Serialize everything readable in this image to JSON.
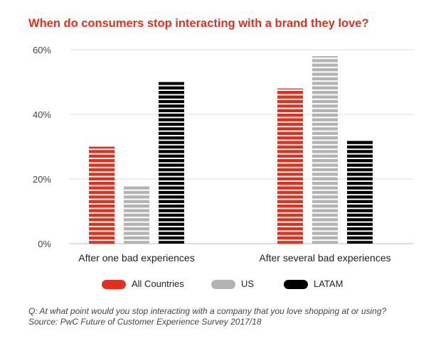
{
  "chart_data": {
    "type": "bar",
    "title": "When do consumers stop interacting with a brand they love?",
    "categories": [
      "After one bad experiences",
      "After several bad experiences"
    ],
    "series": [
      {
        "name": "All Countries",
        "values": [
          30,
          48
        ]
      },
      {
        "name": "US",
        "values": [
          18,
          58
        ]
      },
      {
        "name": "LATAM",
        "values": [
          50,
          32
        ]
      }
    ],
    "colors": [
      "#e0301e",
      "#b3b3b3",
      "#000000"
    ],
    "y_ticks": [
      "0%",
      "20%",
      "40%",
      "60%"
    ],
    "y_tick_values": [
      0,
      20,
      40,
      60
    ],
    "ylim": [
      0,
      60
    ],
    "grid": true,
    "legend_position": "bottom",
    "bar_style": "striped"
  },
  "footnote": {
    "question": "Q: At what point would you stop interacting with a company that you love shopping at or using?",
    "source": "Source: PwC Future of Customer Experience Survey 2017/18"
  }
}
